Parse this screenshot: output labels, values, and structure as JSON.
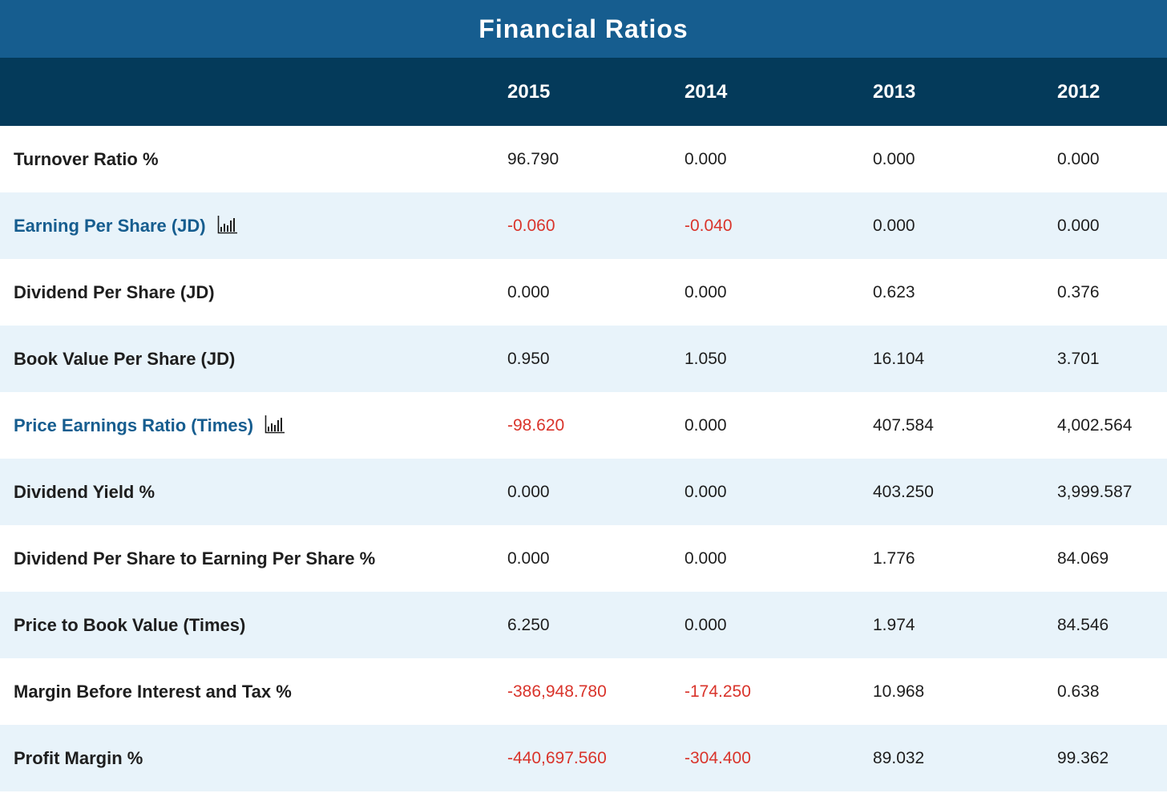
{
  "title": "Financial Ratios",
  "years": [
    "2015",
    "2014",
    "2013",
    "2012"
  ],
  "rows": [
    {
      "label": "Turnover Ratio %",
      "values": [
        "96.790",
        "0.000",
        "0.000",
        "0.000"
      ]
    },
    {
      "label": "Earning Per Share (JD)",
      "values": [
        "-0.060",
        "-0.040",
        "0.000",
        "0.000"
      ],
      "chart_icon": "bar-chart-icon"
    },
    {
      "label": "Dividend Per Share (JD)",
      "values": [
        "0.000",
        "0.000",
        "0.623",
        "0.376"
      ]
    },
    {
      "label": "Book Value Per Share (JD)",
      "values": [
        "0.950",
        "1.050",
        "16.104",
        "3.701"
      ]
    },
    {
      "label": "Price Earnings Ratio (Times)",
      "values": [
        "-98.620",
        "0.000",
        "407.584",
        "4,002.564"
      ],
      "chart_icon": "bar-chart-icon"
    },
    {
      "label": "Dividend Yield %",
      "values": [
        "0.000",
        "0.000",
        "403.250",
        "3,999.587"
      ]
    },
    {
      "label": "Dividend Per Share to Earning Per Share %",
      "values": [
        "0.000",
        "0.000",
        "1.776",
        "84.069"
      ]
    },
    {
      "label": "Price to Book Value (Times)",
      "values": [
        "6.250",
        "0.000",
        "1.974",
        "84.546"
      ]
    },
    {
      "label": "Margin Before Interest and Tax %",
      "values": [
        "-386,948.780",
        "-174.250",
        "10.968",
        "0.638"
      ]
    },
    {
      "label": "Profit Margin %",
      "values": [
        "-440,697.560",
        "-304.400",
        "89.032",
        "99.362"
      ]
    }
  ],
  "colors": {
    "title_bg": "#165d8f",
    "header_bg": "#043a5a",
    "alt_row_bg": "#e8f3fa",
    "link": "#165d8f",
    "negative": "#d9342b"
  }
}
